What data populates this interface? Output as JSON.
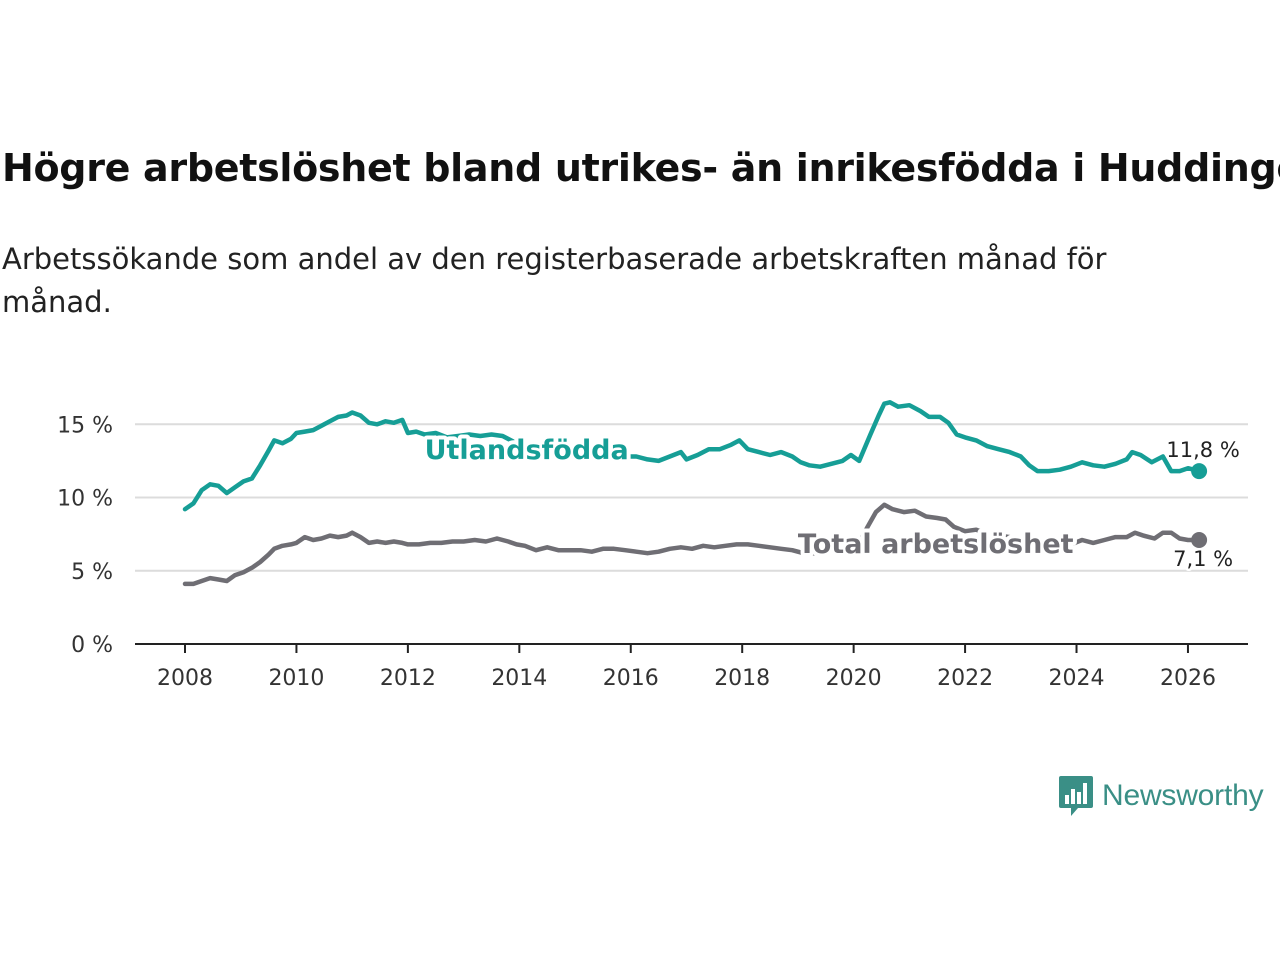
{
  "title": "Högre arbetslöshet bland utrikes- än inrikesfödda i Huddinge",
  "subtitle": "Arbetssökande som andel av den registerbaserade arbetskraften månad för månad.",
  "brand": {
    "name": "Newsworthy",
    "icon": "bar-chart-speech-bubble-icon",
    "color": "#3a8f86"
  },
  "chart_data": {
    "type": "line",
    "x_unit": "year",
    "xlim": [
      2007.1,
      2026.9
    ],
    "ylim": [
      0,
      16.8
    ],
    "y_ticks": [
      0,
      5,
      10,
      15
    ],
    "y_tick_labels": [
      "0 %",
      "5 %",
      "10 %",
      "15 %"
    ],
    "x_ticks": [
      2008,
      2010,
      2012,
      2014,
      2016,
      2018,
      2020,
      2022,
      2024,
      2026
    ],
    "x_tick_labels": [
      "2008",
      "2010",
      "2012",
      "2014",
      "2016",
      "2018",
      "2020",
      "2022",
      "2024",
      "2026"
    ],
    "grid": true,
    "series": [
      {
        "name": "Utlandsfödda",
        "color": "#169e96",
        "label_position": [
          2012.3,
          13.3
        ],
        "end_label": "11,8 %",
        "points": [
          [
            2008.0,
            9.2
          ],
          [
            2008.15,
            9.6
          ],
          [
            2008.3,
            10.5
          ],
          [
            2008.45,
            10.9
          ],
          [
            2008.6,
            10.8
          ],
          [
            2008.75,
            10.3
          ],
          [
            2008.9,
            10.7
          ],
          [
            2009.05,
            11.1
          ],
          [
            2009.2,
            11.3
          ],
          [
            2009.35,
            12.2
          ],
          [
            2009.5,
            13.2
          ],
          [
            2009.6,
            13.9
          ],
          [
            2009.75,
            13.7
          ],
          [
            2009.9,
            14.0
          ],
          [
            2010.0,
            14.4
          ],
          [
            2010.15,
            14.5
          ],
          [
            2010.3,
            14.6
          ],
          [
            2010.45,
            14.9
          ],
          [
            2010.6,
            15.2
          ],
          [
            2010.75,
            15.5
          ],
          [
            2010.9,
            15.6
          ],
          [
            2011.0,
            15.8
          ],
          [
            2011.15,
            15.6
          ],
          [
            2011.3,
            15.1
          ],
          [
            2011.45,
            15.0
          ],
          [
            2011.6,
            15.2
          ],
          [
            2011.75,
            15.1
          ],
          [
            2011.9,
            15.3
          ],
          [
            2012.0,
            14.4
          ],
          [
            2012.15,
            14.5
          ],
          [
            2012.3,
            14.3
          ],
          [
            2012.5,
            14.4
          ],
          [
            2012.7,
            14.1
          ],
          [
            2012.9,
            14.2
          ],
          [
            2013.1,
            14.3
          ],
          [
            2013.3,
            14.2
          ],
          [
            2013.5,
            14.3
          ],
          [
            2013.7,
            14.2
          ],
          [
            2013.9,
            13.8
          ],
          [
            2014.1,
            13.5
          ],
          [
            2014.3,
            13.3
          ],
          [
            2014.5,
            12.9
          ],
          [
            2014.7,
            13.2
          ],
          [
            2014.9,
            13.1
          ],
          [
            2015.1,
            13.2
          ],
          [
            2015.3,
            13.0
          ],
          [
            2015.5,
            12.9
          ],
          [
            2015.7,
            12.9
          ],
          [
            2015.9,
            12.8
          ],
          [
            2016.1,
            12.8
          ],
          [
            2016.3,
            12.6
          ],
          [
            2016.5,
            12.5
          ],
          [
            2016.7,
            12.8
          ],
          [
            2016.9,
            13.1
          ],
          [
            2017.0,
            12.6
          ],
          [
            2017.2,
            12.9
          ],
          [
            2017.4,
            13.3
          ],
          [
            2017.6,
            13.3
          ],
          [
            2017.8,
            13.6
          ],
          [
            2017.95,
            13.9
          ],
          [
            2018.1,
            13.3
          ],
          [
            2018.3,
            13.1
          ],
          [
            2018.5,
            12.9
          ],
          [
            2018.7,
            13.1
          ],
          [
            2018.9,
            12.8
          ],
          [
            2019.05,
            12.4
          ],
          [
            2019.2,
            12.2
          ],
          [
            2019.4,
            12.1
          ],
          [
            2019.6,
            12.3
          ],
          [
            2019.8,
            12.5
          ],
          [
            2019.95,
            12.9
          ],
          [
            2020.1,
            12.5
          ],
          [
            2020.3,
            14.3
          ],
          [
            2020.45,
            15.6
          ],
          [
            2020.55,
            16.4
          ],
          [
            2020.65,
            16.5
          ],
          [
            2020.8,
            16.2
          ],
          [
            2021.0,
            16.3
          ],
          [
            2021.2,
            15.9
          ],
          [
            2021.35,
            15.5
          ],
          [
            2021.55,
            15.5
          ],
          [
            2021.7,
            15.1
          ],
          [
            2021.85,
            14.3
          ],
          [
            2022.0,
            14.1
          ],
          [
            2022.2,
            13.9
          ],
          [
            2022.4,
            13.5
          ],
          [
            2022.6,
            13.3
          ],
          [
            2022.8,
            13.1
          ],
          [
            2023.0,
            12.8
          ],
          [
            2023.15,
            12.2
          ],
          [
            2023.3,
            11.8
          ],
          [
            2023.5,
            11.8
          ],
          [
            2023.7,
            11.9
          ],
          [
            2023.9,
            12.1
          ],
          [
            2024.1,
            12.4
          ],
          [
            2024.3,
            12.2
          ],
          [
            2024.5,
            12.1
          ],
          [
            2024.7,
            12.3
          ],
          [
            2024.9,
            12.6
          ],
          [
            2025.0,
            13.1
          ],
          [
            2025.15,
            12.9
          ],
          [
            2025.35,
            12.4
          ],
          [
            2025.55,
            12.8
          ],
          [
            2025.7,
            11.8
          ],
          [
            2025.85,
            11.8
          ],
          [
            2026.0,
            12.0
          ],
          [
            2026.2,
            11.8
          ]
        ]
      },
      {
        "name": "Total arbetslöshet",
        "color": "#6f6e74",
        "label_position": [
          2019.0,
          6.9
        ],
        "end_label": "7,1 %",
        "points": [
          [
            2008.0,
            4.1
          ],
          [
            2008.15,
            4.1
          ],
          [
            2008.3,
            4.3
          ],
          [
            2008.45,
            4.5
          ],
          [
            2008.6,
            4.4
          ],
          [
            2008.75,
            4.3
          ],
          [
            2008.9,
            4.7
          ],
          [
            2009.05,
            4.9
          ],
          [
            2009.2,
            5.2
          ],
          [
            2009.35,
            5.6
          ],
          [
            2009.5,
            6.1
          ],
          [
            2009.6,
            6.5
          ],
          [
            2009.75,
            6.7
          ],
          [
            2009.9,
            6.8
          ],
          [
            2010.0,
            6.9
          ],
          [
            2010.15,
            7.3
          ],
          [
            2010.3,
            7.1
          ],
          [
            2010.45,
            7.2
          ],
          [
            2010.6,
            7.4
          ],
          [
            2010.75,
            7.3
          ],
          [
            2010.9,
            7.4
          ],
          [
            2011.0,
            7.6
          ],
          [
            2011.15,
            7.3
          ],
          [
            2011.3,
            6.9
          ],
          [
            2011.45,
            7.0
          ],
          [
            2011.6,
            6.9
          ],
          [
            2011.75,
            7.0
          ],
          [
            2011.9,
            6.9
          ],
          [
            2012.0,
            6.8
          ],
          [
            2012.2,
            6.8
          ],
          [
            2012.4,
            6.9
          ],
          [
            2012.6,
            6.9
          ],
          [
            2012.8,
            7.0
          ],
          [
            2013.0,
            7.0
          ],
          [
            2013.2,
            7.1
          ],
          [
            2013.4,
            7.0
          ],
          [
            2013.6,
            7.2
          ],
          [
            2013.8,
            7.0
          ],
          [
            2013.95,
            6.8
          ],
          [
            2014.1,
            6.7
          ],
          [
            2014.3,
            6.4
          ],
          [
            2014.5,
            6.6
          ],
          [
            2014.7,
            6.4
          ],
          [
            2014.9,
            6.4
          ],
          [
            2015.1,
            6.4
          ],
          [
            2015.3,
            6.3
          ],
          [
            2015.5,
            6.5
          ],
          [
            2015.7,
            6.5
          ],
          [
            2015.9,
            6.4
          ],
          [
            2016.1,
            6.3
          ],
          [
            2016.3,
            6.2
          ],
          [
            2016.5,
            6.3
          ],
          [
            2016.7,
            6.5
          ],
          [
            2016.9,
            6.6
          ],
          [
            2017.1,
            6.5
          ],
          [
            2017.3,
            6.7
          ],
          [
            2017.5,
            6.6
          ],
          [
            2017.7,
            6.7
          ],
          [
            2017.9,
            6.8
          ],
          [
            2018.1,
            6.8
          ],
          [
            2018.3,
            6.7
          ],
          [
            2018.5,
            6.6
          ],
          [
            2018.7,
            6.5
          ],
          [
            2018.9,
            6.4
          ],
          [
            2019.1,
            6.2
          ],
          [
            2019.3,
            6.2
          ],
          [
            2019.5,
            6.3
          ],
          [
            2019.7,
            6.4
          ],
          [
            2019.9,
            6.6
          ],
          [
            2020.1,
            6.9
          ],
          [
            2020.25,
            8.0
          ],
          [
            2020.4,
            9.0
          ],
          [
            2020.55,
            9.5
          ],
          [
            2020.7,
            9.2
          ],
          [
            2020.9,
            9.0
          ],
          [
            2021.1,
            9.1
          ],
          [
            2021.3,
            8.7
          ],
          [
            2021.5,
            8.6
          ],
          [
            2021.65,
            8.5
          ],
          [
            2021.8,
            8.0
          ],
          [
            2022.0,
            7.7
          ],
          [
            2022.2,
            7.8
          ],
          [
            2022.4,
            7.5
          ],
          [
            2022.6,
            7.4
          ],
          [
            2022.8,
            7.3
          ],
          [
            2023.0,
            6.9
          ],
          [
            2023.2,
            6.8
          ],
          [
            2023.35,
            6.5
          ],
          [
            2023.55,
            6.6
          ],
          [
            2023.75,
            6.7
          ],
          [
            2023.9,
            6.8
          ],
          [
            2024.1,
            7.1
          ],
          [
            2024.3,
            6.9
          ],
          [
            2024.5,
            7.1
          ],
          [
            2024.7,
            7.3
          ],
          [
            2024.9,
            7.3
          ],
          [
            2025.05,
            7.6
          ],
          [
            2025.2,
            7.4
          ],
          [
            2025.4,
            7.2
          ],
          [
            2025.55,
            7.6
          ],
          [
            2025.7,
            7.6
          ],
          [
            2025.85,
            7.2
          ],
          [
            2026.0,
            7.1
          ],
          [
            2026.2,
            7.1
          ]
        ]
      }
    ]
  }
}
